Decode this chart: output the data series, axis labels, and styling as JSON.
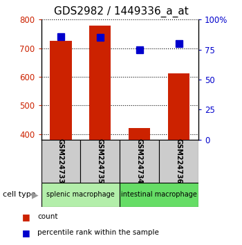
{
  "title": "GDS2982 / 1449336_a_at",
  "samples": [
    "GSM224733",
    "GSM224735",
    "GSM224734",
    "GSM224736"
  ],
  "count_values": [
    725,
    780,
    420,
    612
  ],
  "percentile_values": [
    86,
    85,
    75,
    80
  ],
  "ylim_left": [
    380,
    800
  ],
  "ylim_right": [
    0,
    100
  ],
  "yticks_left": [
    400,
    500,
    600,
    700,
    800
  ],
  "yticks_right": [
    0,
    25,
    50,
    75,
    100
  ],
  "yticklabels_right": [
    "0",
    "25",
    "50",
    "75",
    "100%"
  ],
  "bar_color": "#cc2200",
  "dot_color": "#0000cc",
  "bar_bottom": 380,
  "groups": [
    {
      "label": "splenic macrophage",
      "indices": [
        0,
        1
      ],
      "color": "#b3eeaa"
    },
    {
      "label": "intestinal macrophage",
      "indices": [
        2,
        3
      ],
      "color": "#66dd66"
    }
  ],
  "xlabel_cell_type": "cell type",
  "legend_count_label": "count",
  "legend_percentile_label": "percentile rank within the sample",
  "title_fontsize": 11,
  "tick_color_left": "#cc2200",
  "tick_color_right": "#0000cc",
  "bar_width": 0.55,
  "dot_size": 7,
  "sample_label_color": "#cccccc",
  "background_color": "#ffffff"
}
